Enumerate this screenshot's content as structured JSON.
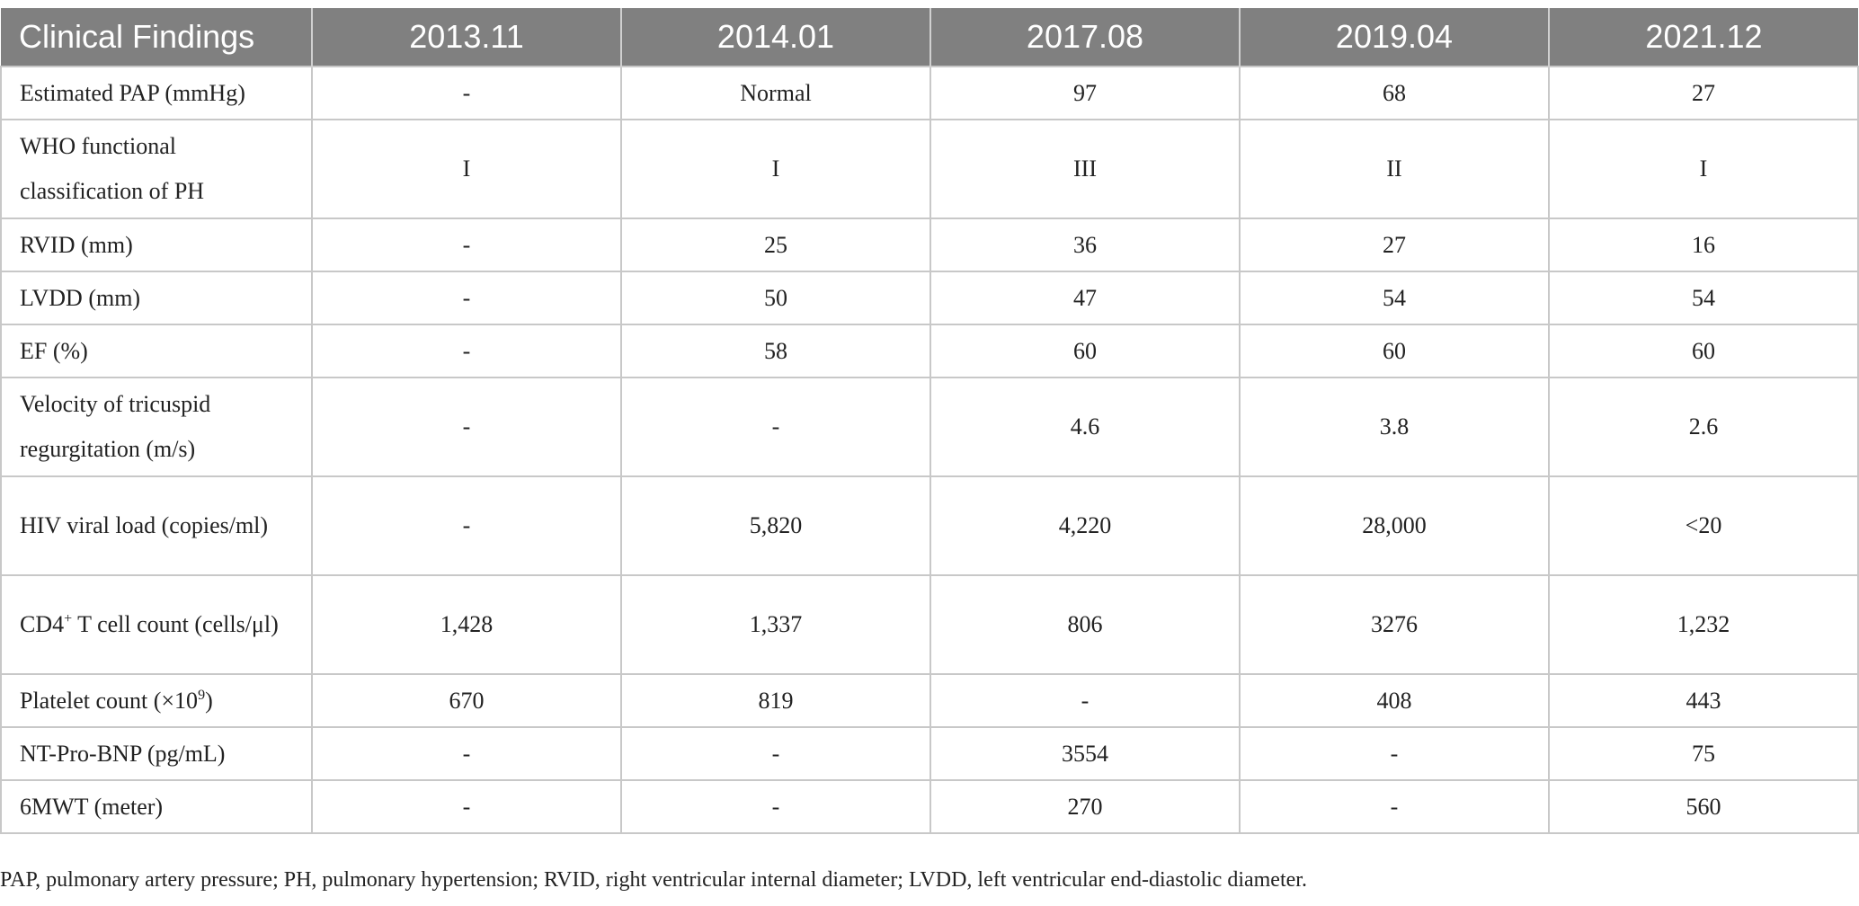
{
  "table": {
    "header": [
      "Clinical Findings",
      "2013.11",
      "2014.01",
      "2017.08",
      "2019.04",
      "2021.12"
    ],
    "rows": [
      {
        "label": "Estimated PAP (mmHg)",
        "values": [
          "-",
          "Normal",
          "97",
          "68",
          "27"
        ]
      },
      {
        "label": "WHO functional classification of PH",
        "values": [
          "I",
          "I",
          "III",
          "II",
          "I"
        ]
      },
      {
        "label": "RVID (mm)",
        "values": [
          "-",
          "25",
          "36",
          "27",
          "16"
        ]
      },
      {
        "label": "LVDD (mm)",
        "values": [
          "-",
          "50",
          "47",
          "54",
          "54"
        ]
      },
      {
        "label": "EF (%)",
        "values": [
          "-",
          "58",
          "60",
          "60",
          "60"
        ]
      },
      {
        "label": "Velocity of tricuspid regurgitation (m/s)",
        "values": [
          "-",
          "-",
          "4.6",
          "3.8",
          "2.6"
        ]
      },
      {
        "label": "HIV viral load (copies/ml)",
        "values": [
          "-",
          "5,820",
          "4,220",
          "28,000",
          "<20"
        ]
      },
      {
        "label_pre": "CD4",
        "label_sup": "+",
        "label_post": " T cell count (cells/μl)",
        "values": [
          "1,428",
          "1,337",
          "806",
          "3276",
          "1,232"
        ]
      },
      {
        "label_pre": "Platelet count (×10",
        "label_sup": "9",
        "label_post": ")",
        "values": [
          "670",
          "819",
          "-",
          "408",
          "443"
        ]
      },
      {
        "label": "NT-Pro-BNP (pg/mL)",
        "values": [
          "-",
          "-",
          "3554",
          "-",
          "75"
        ]
      },
      {
        "label": "6MWT (meter)",
        "values": [
          "-",
          "-",
          "270",
          "-",
          "560"
        ]
      }
    ]
  },
  "footnote": "PAP, pulmonary artery pressure; PH, pulmonary hypertension; RVID, right ventricular internal diameter; LVDD, left ventricular end-diastolic diameter."
}
